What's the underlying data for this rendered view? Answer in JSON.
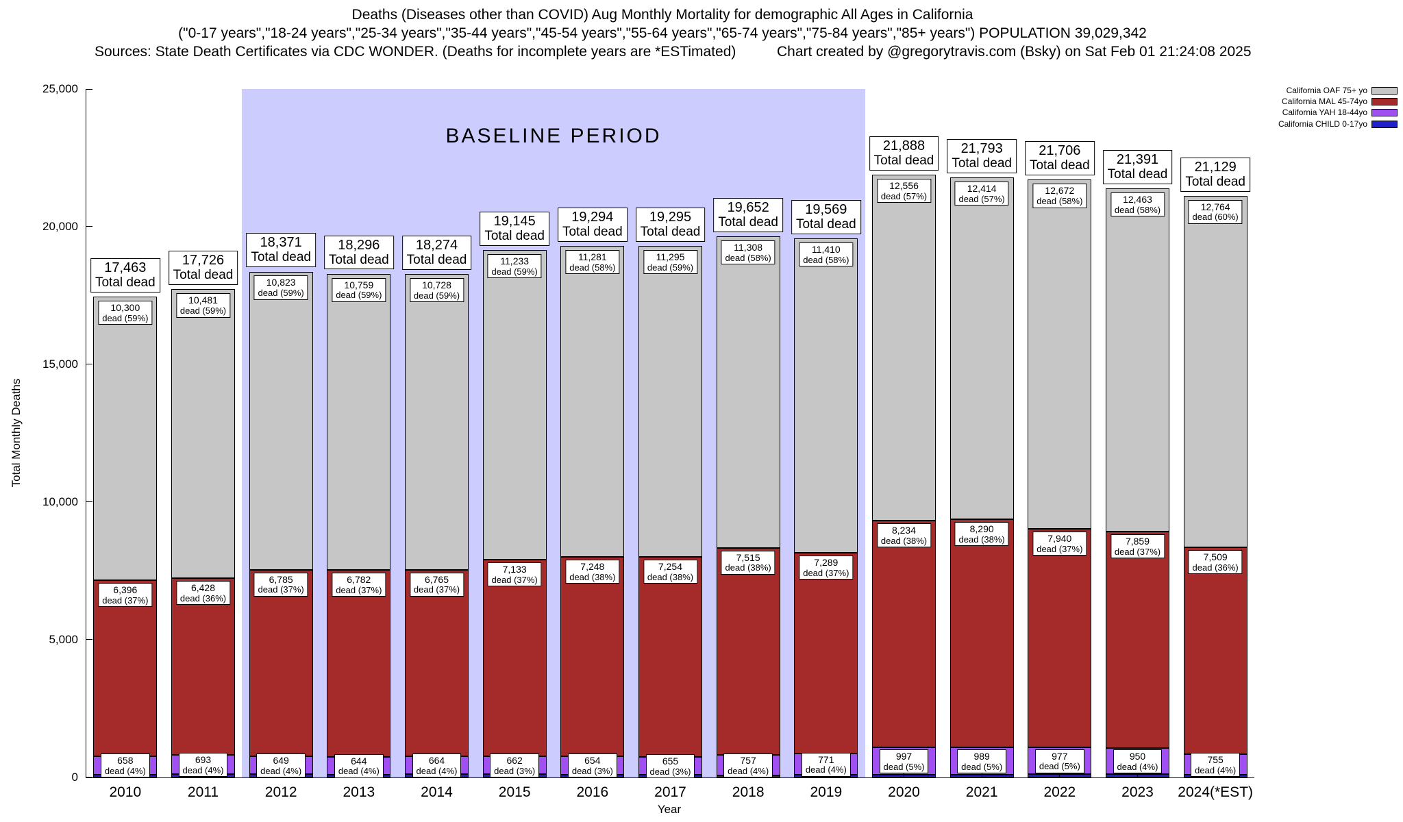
{
  "header": {
    "title_line1": "Deaths (Diseases other than COVID) Aug Monthly Mortality for demographic All Ages in California",
    "title_line2": "(\"0-17 years\",\"18-24 years\",\"25-34 years\",\"35-44 years\",\"45-54 years\",\"55-64 years\",\"65-74 years\",\"75-84 years\",\"85+ years\") POPULATION 39,029,342",
    "title_line3_left": "Sources: State Death Certificates via CDC WONDER. (Deaths for incomplete years are *ESTimated)",
    "title_line3_right": "Chart created by @gregorytravis.com (Bsky) on Sat Feb 01 21:24:08 2025"
  },
  "chart_data": {
    "type": "bar",
    "stacked": true,
    "xlabel": "Year",
    "ylabel": "Total Monthly Deaths",
    "ylim": [
      0,
      25000
    ],
    "ytick_values": [
      0,
      5000,
      10000,
      15000,
      20000,
      25000
    ],
    "ytick_labels": [
      "0",
      "5,000",
      "10,000",
      "15,000",
      "20,000",
      "25,000"
    ],
    "categories": [
      "2010",
      "2011",
      "2012",
      "2013",
      "2014",
      "2015",
      "2016",
      "2017",
      "2018",
      "2019",
      "2020",
      "2021",
      "2022",
      "2023",
      "2024(*EST)"
    ],
    "totals": [
      17463,
      17726,
      18371,
      18296,
      18274,
      19145,
      19294,
      19295,
      19652,
      19569,
      21888,
      21793,
      21706,
      21391,
      21129
    ],
    "totals_display": [
      "17,463",
      "17,726",
      "18,371",
      "18,296",
      "18,274",
      "19,145",
      "19,294",
      "19,295",
      "19,652",
      "19,569",
      "21,888",
      "21,793",
      "21,706",
      "21,391",
      "21,129"
    ],
    "total_label": "Total dead",
    "baseline": {
      "label": "BASELINE PERIOD",
      "start_index": 2,
      "end_index": 9,
      "color": "#ccccff"
    },
    "series": [
      {
        "key": "oaf",
        "name": "California OAF 75+ yo",
        "color": "#c6c6c6",
        "values": [
          10300,
          10481,
          10823,
          10759,
          10728,
          11233,
          11281,
          11295,
          11308,
          11410,
          12556,
          12414,
          12672,
          12463,
          12764
        ],
        "values_display": [
          "10,300",
          "10,481",
          "10,823",
          "10,759",
          "10,728",
          "11,233",
          "11,281",
          "11,295",
          "11,308",
          "11,410",
          "12,556",
          "12,414",
          "12,672",
          "12,463",
          "12,764"
        ],
        "pct_display": [
          "dead (59%)",
          "dead (59%)",
          "dead (59%)",
          "dead (59%)",
          "dead (59%)",
          "dead (59%)",
          "dead (58%)",
          "dead (59%)",
          "dead (58%)",
          "dead (58%)",
          "dead (57%)",
          "dead (57%)",
          "dead (58%)",
          "dead (58%)",
          "dead (60%)"
        ]
      },
      {
        "key": "mal",
        "name": "California MAL 45-74yo",
        "color": "#a52a2a",
        "values": [
          6396,
          6428,
          6785,
          6782,
          6765,
          7133,
          7248,
          7254,
          7515,
          7289,
          8234,
          8290,
          7940,
          7859,
          7509
        ],
        "values_display": [
          "6,396",
          "6,428",
          "6,785",
          "6,782",
          "6,765",
          "7,133",
          "7,248",
          "7,254",
          "7,515",
          "7,289",
          "8,234",
          "8,290",
          "7,940",
          "7,859",
          "7,509"
        ],
        "pct_display": [
          "dead (37%)",
          "dead (36%)",
          "dead (37%)",
          "dead (37%)",
          "dead (37%)",
          "dead (37%)",
          "dead (38%)",
          "dead (38%)",
          "dead (38%)",
          "dead (37%)",
          "dead (38%)",
          "dead (38%)",
          "dead (37%)",
          "dead (37%)",
          "dead (36%)"
        ]
      },
      {
        "key": "yah",
        "name": "California YAH 18-44yo",
        "color": "#a050f0",
        "values": [
          658,
          693,
          649,
          644,
          664,
          662,
          654,
          655,
          757,
          771,
          997,
          989,
          977,
          950,
          755
        ],
        "values_display": [
          "658",
          "693",
          "649",
          "644",
          "664",
          "662",
          "654",
          "655",
          "757",
          "771",
          "997",
          "989",
          "977",
          "950",
          "755"
        ],
        "pct_display": [
          "dead (4%)",
          "dead (4%)",
          "dead (4%)",
          "dead (4%)",
          "dead (4%)",
          "dead (3%)",
          "dead (3%)",
          "dead (3%)",
          "dead (4%)",
          "dead (4%)",
          "dead (5%)",
          "dead (5%)",
          "dead (5%)",
          "dead (4%)",
          "dead (4%)"
        ]
      },
      {
        "key": "child",
        "name": "California CHILD 0-17yo",
        "color": "#2020cc",
        "derived_remainder": true
      }
    ]
  }
}
